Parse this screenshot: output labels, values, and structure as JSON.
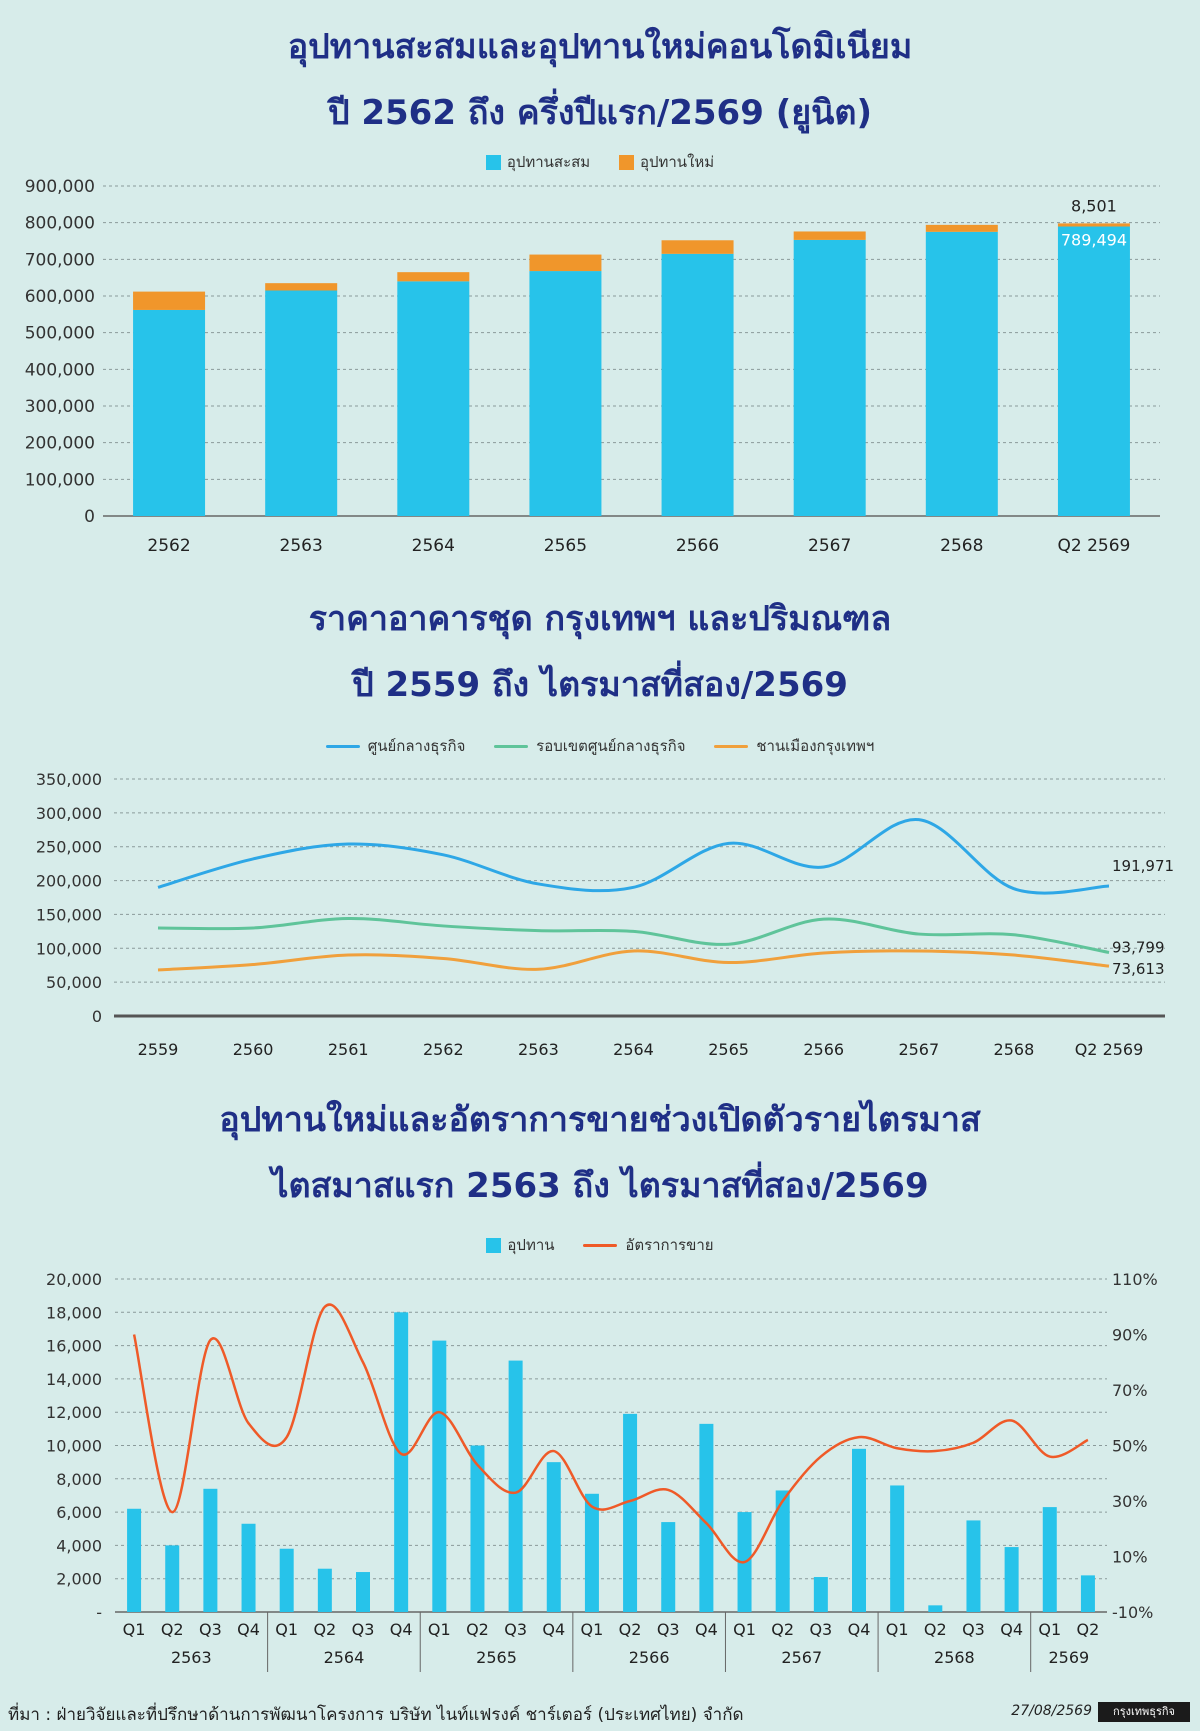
{
  "colors": {
    "title": "#1f2f86",
    "cyan": "#27c3ea",
    "orange": "#f0962b",
    "line_blue": "#2ea7e6",
    "line_green": "#5fc49a",
    "line_orange": "#f0a03c",
    "line_red": "#ef5a28"
  },
  "chart1": {
    "title_line1": "อุปทานสะสมและอุปทานใหม่คอนโดมิเนียม",
    "title_line2": "ปี 2562 ถึง ครึ่งปีแรก/2569 (ยูนิต)",
    "legend": [
      "อุปทานสะสม",
      "อุปทานใหม่"
    ]
  },
  "chart2": {
    "title_line1": "ราคาอาคารชุด กรุงเทพฯ และปริมณฑล",
    "title_line2": "ปี 2559 ถึง ไตรมาสที่สอง/2569",
    "legend": [
      "ศูนย์กลางธุรกิจ",
      "รอบเขตศูนย์กลางธุรกิจ",
      "ชานเมืองกรุงเทพฯ"
    ]
  },
  "chart3": {
    "title_line1": "อุปทานใหม่และอัตราการขายช่วงเปิดตัวรายไตรมาส",
    "title_line2": "ไตสมาสแรก 2563 ถึง ไตรมาสที่สอง/2569",
    "legend": [
      "อุปทาน",
      "อัตราการขาย"
    ]
  },
  "chart_data": [
    {
      "type": "bar",
      "categories": [
        "2562",
        "2563",
        "2564",
        "2565",
        "2566",
        "2567",
        "2568",
        "Q2 2569"
      ],
      "series": [
        {
          "name": "อุปทานสะสม",
          "values": [
            562000,
            615000,
            640000,
            668000,
            715000,
            753000,
            775000,
            789494
          ]
        },
        {
          "name": "อุปทานใหม่",
          "values": [
            50000,
            20000,
            25000,
            45000,
            37000,
            23000,
            19000,
            8501
          ]
        }
      ],
      "stacked": true,
      "ylim": [
        0,
        900000
      ],
      "yticks": [
        "0",
        "100,000",
        "200,000",
        "300,000",
        "400,000",
        "500,000",
        "600,000",
        "700,000",
        "800,000",
        "900,000"
      ],
      "annotations": [
        "8,501",
        "789,494"
      ],
      "legend_position": "top-center",
      "grid": true
    },
    {
      "type": "line",
      "x": [
        "2559",
        "2560",
        "2561",
        "2562",
        "2563",
        "2564",
        "2565",
        "2566",
        "2567",
        "2568",
        "Q2 2569"
      ],
      "series": [
        {
          "name": "ศูนย์กลางธุรกิจ",
          "values": [
            190000,
            232000,
            254000,
            238000,
            195000,
            190000,
            255000,
            220000,
            290000,
            188000,
            191971
          ]
        },
        {
          "name": "รอบเขตศูนย์กลางธุรกิจ",
          "values": [
            130000,
            130000,
            144000,
            133000,
            126000,
            125000,
            106000,
            143000,
            121000,
            120000,
            93799
          ]
        },
        {
          "name": "ชานเมืองกรุงเทพฯ",
          "values": [
            68000,
            76000,
            90000,
            85000,
            69000,
            96000,
            79000,
            93000,
            96000,
            90000,
            73613
          ]
        }
      ],
      "ylim": [
        0,
        350000
      ],
      "yticks": [
        "0",
        "50,000",
        "100,000",
        "150,000",
        "200,000",
        "250,000",
        "300,000",
        "350,000"
      ],
      "end_labels": [
        "191,971",
        "93,799",
        "73,613"
      ],
      "legend_position": "top-center",
      "grid": true
    },
    {
      "type": "bar",
      "groups": [
        "2563",
        "2564",
        "2565",
        "2566",
        "2567",
        "2568",
        "2569"
      ],
      "categories": [
        "Q1",
        "Q2",
        "Q3",
        "Q4",
        "Q1",
        "Q2",
        "Q3",
        "Q4",
        "Q1",
        "Q2",
        "Q3",
        "Q4",
        "Q1",
        "Q2",
        "Q3",
        "Q4",
        "Q1",
        "Q2",
        "Q3",
        "Q4",
        "Q1",
        "Q2",
        "Q3",
        "Q4",
        "Q1",
        "Q2"
      ],
      "series": [
        {
          "name": "อุปทาน",
          "axis": "left",
          "values": [
            6200,
            4000,
            7400,
            5300,
            3800,
            2600,
            2400,
            18000,
            16300,
            10000,
            15100,
            9000,
            7100,
            11900,
            5400,
            11300,
            6000,
            7300,
            2100,
            9800,
            7600,
            400,
            5500,
            3900,
            6300,
            2200
          ]
        },
        {
          "name": "อัตราการขาย",
          "axis": "right",
          "type": "line",
          "values": [
            90,
            26,
            88,
            58,
            53,
            100,
            80,
            47,
            62,
            43,
            33,
            48,
            28,
            30,
            34,
            22,
            8,
            30,
            46,
            53,
            49,
            48,
            51,
            59,
            46,
            52
          ]
        }
      ],
      "ylim": [
        0,
        20000
      ],
      "yticks": [
        "-",
        "2,000",
        "4,000",
        "6,000",
        "8,000",
        "10,000",
        "12,000",
        "14,000",
        "16,000",
        "18,000",
        "20,000"
      ],
      "y2lim": [
        -10,
        110
      ],
      "y2ticks": [
        "-10%",
        "10%",
        "30%",
        "50%",
        "70%",
        "90%",
        "110%"
      ],
      "legend_position": "top-center",
      "grid": true
    }
  ],
  "footer": {
    "source": "ที่มา : ฝ่ายวิจัยและที่ปรึกษาด้านการพัฒนาโครงการ บริษัท ไนท์แฟรงค์ ชาร์เตอร์ (ประเทศไทย) จำกัด",
    "date": "27/08/2569",
    "logo_text": "กรุงเทพธุรกิจ"
  }
}
